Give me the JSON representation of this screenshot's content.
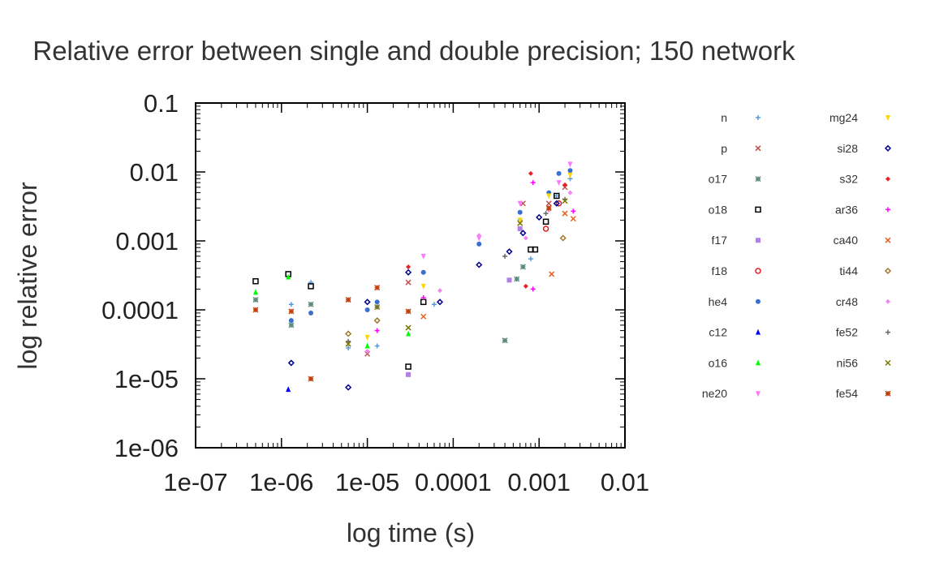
{
  "chart_data": {
    "type": "scatter",
    "title": "Relative error between single and double precision; 150 network",
    "xlabel": "log time (s)",
    "ylabel": "log relative error",
    "xscale": "log",
    "yscale": "log",
    "xlim": [
      1e-07,
      0.01
    ],
    "ylim": [
      1e-06,
      0.1
    ],
    "x_ticks": [
      {
        "value": 1e-07,
        "label": "1e-07"
      },
      {
        "value": 1e-06,
        "label": "1e-06"
      },
      {
        "value": 1e-05,
        "label": "1e-05"
      },
      {
        "value": 0.0001,
        "label": "0.0001"
      },
      {
        "value": 0.001,
        "label": "0.001"
      },
      {
        "value": 0.01,
        "label": "0.01"
      }
    ],
    "y_ticks": [
      {
        "value": 0.1,
        "label": "0.1"
      },
      {
        "value": 0.01,
        "label": "0.01"
      },
      {
        "value": 0.001,
        "label": "0.001"
      },
      {
        "value": 0.0001,
        "label": "0.0001"
      },
      {
        "value": 1e-05,
        "label": "1e-05"
      },
      {
        "value": 1e-06,
        "label": "1e-06"
      }
    ],
    "grid": false,
    "legend_position": "right",
    "series": [
      {
        "name": "n",
        "marker": "plus",
        "color": "#5b9bd5",
        "points": [
          [
            1.3e-06,
            0.00012
          ],
          [
            2.2e-06,
            0.00025
          ],
          [
            6e-06,
            2.8e-05
          ],
          [
            1.3e-05,
            3e-05
          ],
          [
            6e-05,
            0.00012
          ],
          [
            0.0006,
            0.002
          ],
          [
            0.0008,
            0.00055
          ],
          [
            0.0016,
            0.0045
          ],
          [
            0.0023,
            0.008
          ]
        ]
      },
      {
        "name": "p",
        "marker": "cross",
        "color": "#c0504d",
        "points": [
          [
            1e-05,
            2.3e-05
          ],
          [
            3e-05,
            0.00025
          ],
          [
            0.00065,
            0.0035
          ],
          [
            0.0013,
            0.0035
          ],
          [
            0.002,
            0.006
          ]
        ]
      },
      {
        "name": "o17",
        "marker": "star",
        "color": "#5f8b7c",
        "points": [
          [
            5e-07,
            0.00014
          ],
          [
            1.3e-06,
            6e-05
          ],
          [
            2.2e-06,
            0.00012
          ],
          [
            0.0004,
            3.6e-05
          ],
          [
            0.00055,
            0.00028
          ],
          [
            0.00065,
            0.00042
          ]
        ]
      },
      {
        "name": "o18",
        "marker": "square",
        "color": "#000000",
        "points": [
          [
            5e-07,
            0.00026
          ],
          [
            1.2e-06,
            0.00033
          ],
          [
            2.2e-06,
            0.00022
          ],
          [
            3e-05,
            1.5e-05
          ],
          [
            4.5e-05,
            0.00013
          ],
          [
            0.0008,
            0.00075
          ],
          [
            0.0009,
            0.00075
          ],
          [
            0.0012,
            0.0019
          ],
          [
            0.0016,
            0.0045
          ]
        ]
      },
      {
        "name": "f17",
        "marker": "square-filled",
        "color": "#b27fe8",
        "points": [
          [
            3e-05,
            1.15e-05
          ],
          [
            0.00045,
            0.00027
          ],
          [
            0.0006,
            0.0015
          ]
        ]
      },
      {
        "name": "f18",
        "marker": "circle",
        "color": "#e41a1c",
        "points": [
          [
            0.0012,
            0.0015
          ],
          [
            0.0017,
            0.0035
          ]
        ]
      },
      {
        "name": "he4",
        "marker": "circle-filled",
        "color": "#3a6fd0",
        "points": [
          [
            1.3e-06,
            7e-05
          ],
          [
            2.2e-06,
            9e-05
          ],
          [
            1e-05,
            0.0001
          ],
          [
            1.3e-05,
            0.00013
          ],
          [
            4.5e-05,
            0.00035
          ],
          [
            0.0002,
            0.0009
          ],
          [
            0.0006,
            0.0026
          ],
          [
            0.0013,
            0.005
          ],
          [
            0.0017,
            0.0095
          ],
          [
            0.0023,
            0.0105
          ]
        ]
      },
      {
        "name": "c12",
        "marker": "triangle-up",
        "color": "#0000ff",
        "points": [
          [
            1.2e-06,
            7e-06
          ]
        ]
      },
      {
        "name": "o16",
        "marker": "triangle-up",
        "color": "#00ff00",
        "points": [
          [
            5e-07,
            0.00018
          ],
          [
            1.2e-06,
            0.0003
          ],
          [
            1e-05,
            3e-05
          ],
          [
            3e-05,
            4.5e-05
          ]
        ]
      },
      {
        "name": "ne20",
        "marker": "triangle-down",
        "color": "#ff77ff",
        "points": [
          [
            4.5e-05,
            0.0006
          ],
          [
            0.0002,
            0.0011
          ],
          [
            0.0006,
            0.0035
          ],
          [
            0.0017,
            0.007
          ],
          [
            0.0023,
            0.013
          ]
        ]
      },
      {
        "name": "mg24",
        "marker": "triangle-down",
        "color": "#ffd700",
        "points": [
          [
            1e-05,
            4e-05
          ],
          [
            4.5e-05,
            0.00022
          ],
          [
            0.0006,
            0.002
          ],
          [
            0.0013,
            0.0045
          ],
          [
            0.0023,
            0.009
          ]
        ]
      },
      {
        "name": "si28",
        "marker": "diamond",
        "color": "#00008b",
        "points": [
          [
            1.3e-06,
            1.7e-05
          ],
          [
            6e-06,
            7.5e-06
          ],
          [
            1e-05,
            0.00013
          ],
          [
            3e-05,
            0.00035
          ],
          [
            7e-05,
            0.00013
          ],
          [
            0.0002,
            0.00045
          ],
          [
            0.00045,
            0.0007
          ],
          [
            0.00065,
            0.0013
          ],
          [
            0.001,
            0.0022
          ],
          [
            0.0016,
            0.0035
          ]
        ]
      },
      {
        "name": "s32",
        "marker": "diamond-filled",
        "color": "#e8202a",
        "points": [
          [
            3e-05,
            0.00042
          ],
          [
            0.0007,
            0.00022
          ],
          [
            0.0008,
            0.0095
          ],
          [
            0.002,
            0.0065
          ]
        ]
      },
      {
        "name": "ar36",
        "marker": "plus",
        "color": "#ff00ff",
        "points": [
          [
            1.3e-05,
            5e-05
          ],
          [
            4.5e-05,
            0.00015
          ],
          [
            0.00085,
            0.0002
          ],
          [
            0.00085,
            0.007
          ],
          [
            0.0025,
            0.0027
          ]
        ]
      },
      {
        "name": "ca40",
        "marker": "cross",
        "color": "#e95f1e",
        "points": [
          [
            4.5e-05,
            8e-05
          ],
          [
            0.0014,
            0.00033
          ],
          [
            0.002,
            0.0025
          ],
          [
            0.0025,
            0.0021
          ]
        ]
      },
      {
        "name": "ti44",
        "marker": "diamond",
        "color": "#a0782d",
        "points": [
          [
            6e-06,
            4.5e-05
          ],
          [
            1.3e-05,
            7e-05
          ],
          [
            0.0019,
            0.0011
          ]
        ]
      },
      {
        "name": "cr48",
        "marker": "diamond-filled",
        "color": "#ee88ee",
        "points": [
          [
            1e-05,
            2.5e-05
          ],
          [
            7e-05,
            0.00019
          ],
          [
            0.0002,
            0.0012
          ],
          [
            0.0007,
            0.0011
          ],
          [
            0.0013,
            0.0028
          ],
          [
            0.0023,
            0.005
          ]
        ]
      },
      {
        "name": "fe52",
        "marker": "plus",
        "color": "#666666",
        "points": [
          [
            6e-06,
            3.5e-05
          ],
          [
            1.3e-05,
            0.00011
          ],
          [
            0.0004,
            0.0006
          ],
          [
            0.0012,
            0.0025
          ],
          [
            0.002,
            0.004
          ]
        ]
      },
      {
        "name": "ni56",
        "marker": "cross",
        "color": "#777700",
        "points": [
          [
            6e-06,
            3.2e-05
          ],
          [
            1.3e-05,
            0.00011
          ],
          [
            3e-05,
            5.5e-05
          ],
          [
            0.0006,
            0.0018
          ],
          [
            0.002,
            0.0038
          ]
        ]
      },
      {
        "name": "fe54",
        "marker": "star",
        "color": "#c0410c",
        "points": [
          [
            5e-07,
            0.0001
          ],
          [
            1.3e-06,
            9.5e-05
          ],
          [
            2.2e-06,
            1e-05
          ],
          [
            6e-06,
            0.00014
          ],
          [
            1.3e-05,
            0.00021
          ],
          [
            3e-05,
            9.5e-05
          ],
          [
            0.0013,
            0.003
          ]
        ]
      }
    ]
  }
}
